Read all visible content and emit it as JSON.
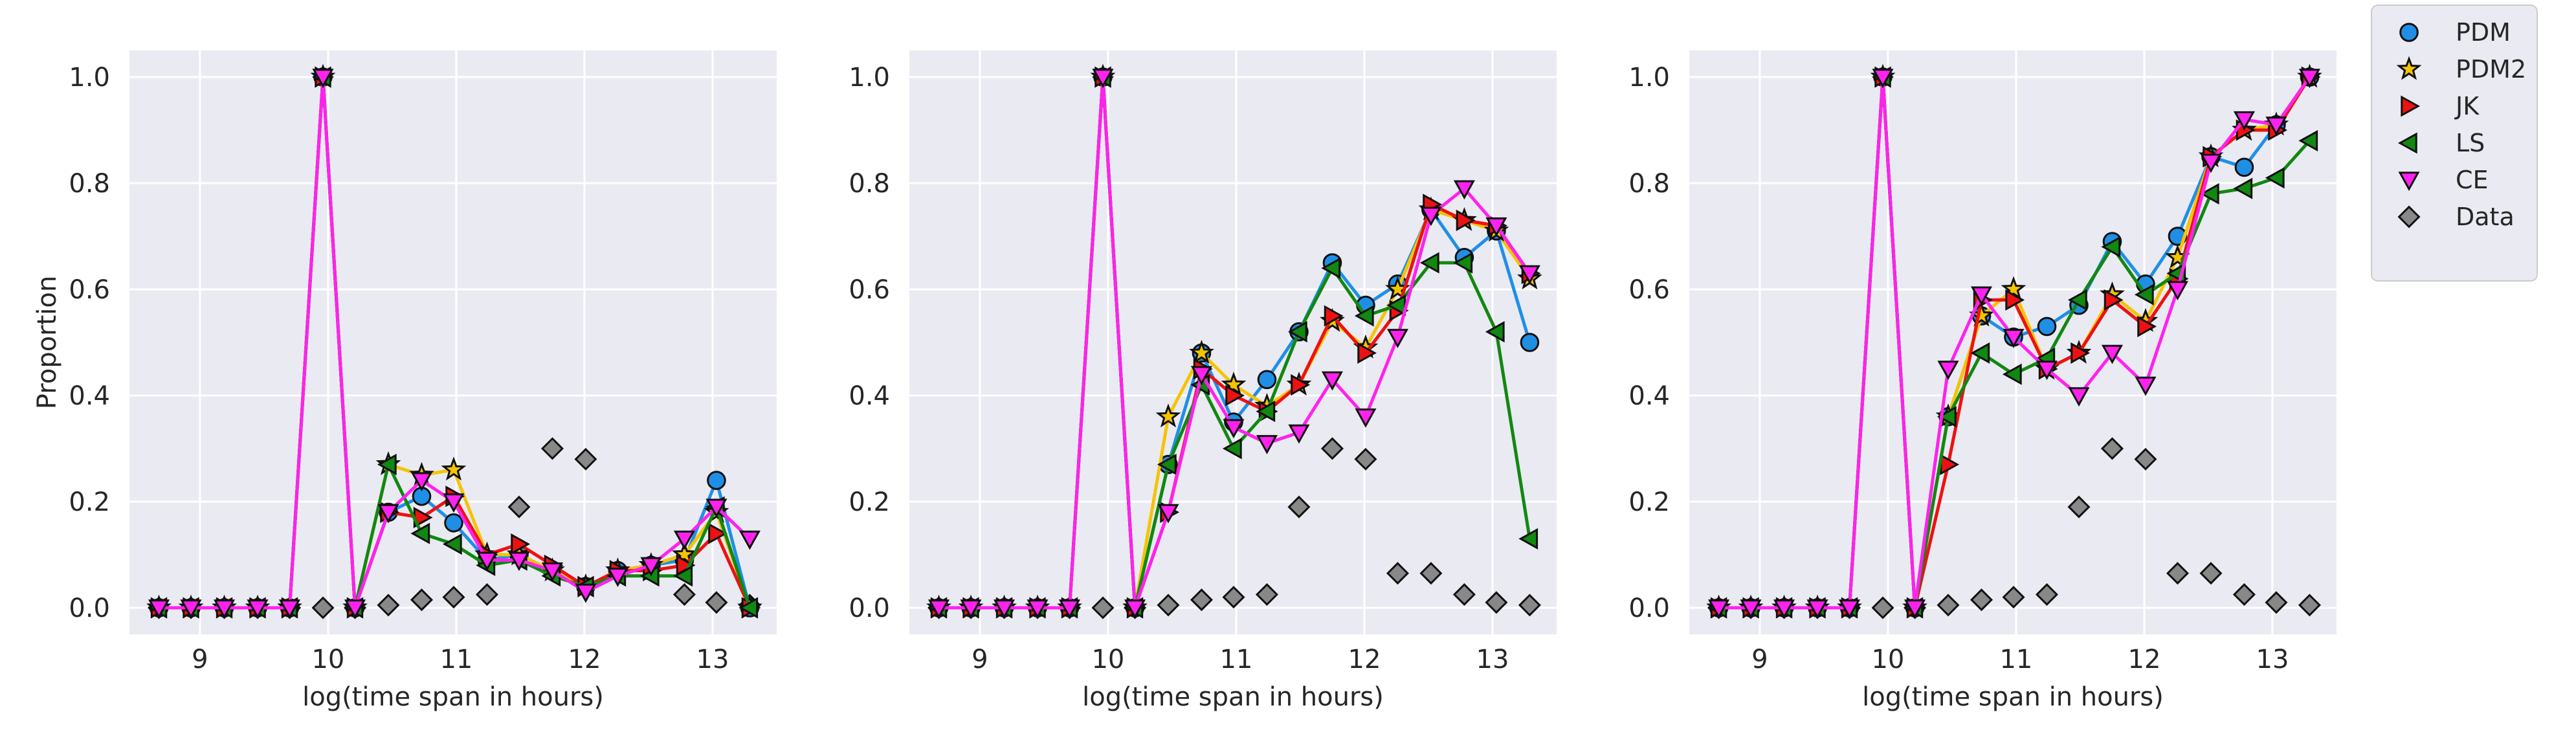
{
  "chart_data": {
    "type": "line",
    "xlabel": "log(time span in hours)",
    "ylabel": "Proportion",
    "xlim": [
      8.45,
      13.5
    ],
    "ylim": [
      -0.05,
      1.05
    ],
    "xticks": [
      "9",
      "10",
      "11",
      "12",
      "13"
    ],
    "yticks": [
      "0.0",
      "0.2",
      "0.4",
      "0.6",
      "0.8",
      "1.0"
    ],
    "grid": true,
    "legend_position": "outside-right",
    "x": [
      8.68,
      8.93,
      9.19,
      9.45,
      9.7,
      9.96,
      10.21,
      10.47,
      10.73,
      10.98,
      11.24,
      11.49,
      11.75,
      12.01,
      12.26,
      12.52,
      12.78,
      13.03,
      13.29
    ],
    "series_styles": [
      {
        "name": "PDM",
        "color": "#1f8fe6",
        "marker": "circle"
      },
      {
        "name": "PDM2",
        "color": "#f5c400",
        "marker": "star"
      },
      {
        "name": "JK",
        "color": "#ee1111",
        "marker": "triangle-right"
      },
      {
        "name": "LS",
        "color": "#118811",
        "marker": "triangle-left"
      },
      {
        "name": "CE",
        "color": "#ff22ee",
        "marker": "triangle-down"
      },
      {
        "name": "Data",
        "color": "#888888",
        "marker": "diamond"
      }
    ],
    "panels": [
      {
        "series": [
          {
            "name": "PDM",
            "values": [
              0,
              0,
              0,
              0,
              0,
              1,
              0,
              0.18,
              0.21,
              0.16,
              0.09,
              0.1,
              0.07,
              0.04,
              0.07,
              0.08,
              0.09,
              0.24,
              0
            ]
          },
          {
            "name": "PDM2",
            "values": [
              0,
              0,
              0,
              0,
              0,
              1,
              0,
              0.27,
              0.25,
              0.26,
              0.1,
              0.1,
              0.07,
              0.04,
              0.07,
              0.08,
              0.1,
              0.18,
              0
            ]
          },
          {
            "name": "JK",
            "values": [
              0,
              0,
              0,
              0,
              0,
              1,
              0,
              0.18,
              0.17,
              0.21,
              0.1,
              0.12,
              0.08,
              0.04,
              0.07,
              0.07,
              0.08,
              0.14,
              0
            ]
          },
          {
            "name": "LS",
            "values": [
              0,
              0,
              0,
              0,
              0,
              1,
              0,
              0.27,
              0.14,
              0.12,
              0.08,
              0.09,
              0.06,
              0.04,
              0.06,
              0.06,
              0.06,
              0.19,
              0
            ]
          },
          {
            "name": "CE",
            "values": [
              0,
              0,
              0,
              0,
              0,
              1,
              0,
              0.18,
              0.24,
              0.2,
              0.09,
              0.09,
              0.07,
              0.03,
              0.06,
              0.08,
              0.13,
              0.19,
              0.13
            ]
          },
          {
            "name": "Data",
            "values": [
              0,
              0,
              0,
              0,
              0,
              0,
              0,
              0.005,
              0.015,
              0.02,
              0.025,
              0.19,
              0.3,
              0.28,
              null,
              null,
              0.025,
              0.01,
              0.005
            ]
          }
        ]
      },
      {
        "series": [
          {
            "name": "PDM",
            "values": [
              0,
              0,
              0,
              0,
              0,
              1,
              0,
              0.27,
              0.48,
              0.35,
              0.43,
              0.52,
              0.65,
              0.57,
              0.61,
              0.75,
              0.66,
              0.71,
              0.5
            ]
          },
          {
            "name": "PDM2",
            "values": [
              0,
              0,
              0,
              0,
              0,
              1,
              0,
              0.36,
              0.48,
              0.42,
              0.38,
              0.42,
              0.54,
              0.49,
              0.6,
              0.75,
              0.73,
              0.71,
              0.62
            ]
          },
          {
            "name": "JK",
            "values": [
              0,
              0,
              0,
              0,
              0,
              1,
              0,
              0.18,
              0.45,
              0.4,
              0.37,
              0.42,
              0.55,
              0.48,
              0.56,
              0.76,
              0.73,
              0.72,
              0.63
            ]
          },
          {
            "name": "LS",
            "values": [
              0,
              0,
              0,
              0,
              0,
              1,
              0,
              0.27,
              0.42,
              0.3,
              0.37,
              0.52,
              0.64,
              0.55,
              0.57,
              0.65,
              0.65,
              0.52,
              0.13
            ]
          },
          {
            "name": "CE",
            "values": [
              0,
              0,
              0,
              0,
              0,
              1,
              0,
              0.18,
              0.44,
              0.34,
              0.31,
              0.33,
              0.43,
              0.36,
              0.51,
              0.74,
              0.79,
              0.72,
              0.63
            ]
          },
          {
            "name": "Data",
            "values": [
              0,
              0,
              0,
              0,
              0,
              0,
              0,
              0.005,
              0.015,
              0.02,
              0.025,
              0.19,
              0.3,
              0.28,
              0.065,
              0.065,
              0.025,
              0.01,
              0.005
            ]
          }
        ]
      },
      {
        "series": [
          {
            "name": "PDM",
            "values": [
              0,
              0,
              0,
              0,
              0,
              1,
              0,
              0.36,
              0.55,
              0.51,
              0.53,
              0.57,
              0.69,
              0.61,
              0.7,
              0.85,
              0.83,
              0.91,
              1.0
            ]
          },
          {
            "name": "PDM2",
            "values": [
              0,
              0,
              0,
              0,
              0,
              1,
              0,
              0.36,
              0.55,
              0.6,
              0.45,
              0.48,
              0.59,
              0.54,
              0.66,
              0.85,
              0.9,
              0.91,
              1.0
            ]
          },
          {
            "name": "JK",
            "values": [
              0,
              0,
              0,
              0,
              0,
              1,
              0,
              0.27,
              0.58,
              0.58,
              0.45,
              0.48,
              0.58,
              0.53,
              0.62,
              0.85,
              0.9,
              0.9,
              1.0
            ]
          },
          {
            "name": "LS",
            "values": [
              0,
              0,
              0,
              0,
              0,
              1,
              0,
              0.36,
              0.48,
              0.44,
              0.47,
              0.58,
              0.68,
              0.59,
              0.63,
              0.78,
              0.79,
              0.81,
              0.88
            ]
          },
          {
            "name": "CE",
            "values": [
              0,
              0,
              0,
              0,
              0,
              1,
              0,
              0.45,
              0.59,
              0.51,
              0.45,
              0.4,
              0.48,
              0.42,
              0.6,
              0.84,
              0.92,
              0.91,
              1.0
            ]
          },
          {
            "name": "Data",
            "values": [
              0,
              0,
              0,
              0,
              0,
              0,
              0,
              0.005,
              0.015,
              0.02,
              0.025,
              0.19,
              0.3,
              0.28,
              0.065,
              0.065,
              0.025,
              0.01,
              0.005
            ]
          }
        ]
      }
    ]
  }
}
